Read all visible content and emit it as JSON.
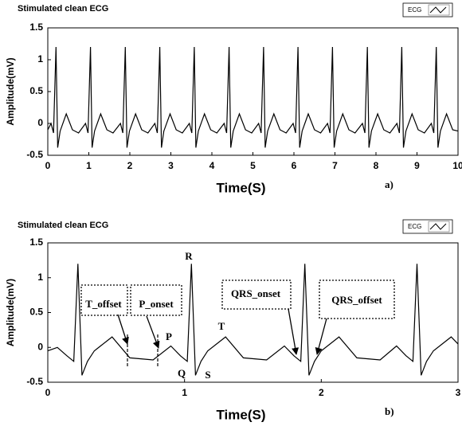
{
  "chart_data": [
    {
      "type": "line",
      "title": "Stimulated clean ECG",
      "xlabel": "Time(S)",
      "ylabel": "Amplitude(mV)",
      "panel_label": "a)",
      "x": [
        0,
        0.08,
        0.14,
        0.2,
        0.24,
        0.3,
        0.45,
        0.6,
        0.75,
        0.92,
        0.98,
        1.04,
        1.08,
        1.14,
        1.29,
        1.44,
        1.59,
        1.77,
        1.83,
        1.89,
        1.93,
        1.99,
        2.14,
        2.29,
        2.44,
        2.61,
        2.67,
        2.73,
        2.77,
        2.83,
        2.98,
        3.13,
        3.28,
        3.45,
        3.51,
        3.57,
        3.61,
        3.67,
        3.82,
        3.97,
        4.12,
        4.3,
        4.36,
        4.42,
        4.46,
        4.52,
        4.67,
        4.82,
        4.97,
        5.14,
        5.2,
        5.26,
        5.3,
        5.36,
        5.51,
        5.66,
        5.81,
        5.98,
        6.04,
        6.1,
        6.14,
        6.2,
        6.35,
        6.5,
        6.65,
        6.82,
        6.88,
        6.94,
        6.98,
        7.04,
        7.19,
        7.34,
        7.49,
        7.67,
        7.73,
        7.79,
        7.83,
        7.89,
        8.04,
        8.19,
        8.34,
        8.51,
        8.57,
        8.63,
        8.67,
        8.73,
        8.88,
        9.03,
        9.18,
        9.35,
        9.41,
        9.47,
        9.51,
        9.57,
        9.72,
        9.87,
        10
      ],
      "series": [
        {
          "name": "ECG",
          "color": "#000000",
          "values": [
            -0.1,
            0.0,
            -0.15,
            1.2,
            -0.38,
            -0.12,
            0.15,
            -0.1,
            -0.15,
            0.0,
            -0.15,
            1.2,
            -0.38,
            -0.12,
            0.15,
            -0.1,
            -0.15,
            0.0,
            -0.15,
            1.2,
            -0.38,
            -0.12,
            0.15,
            -0.1,
            -0.15,
            0.0,
            -0.15,
            1.2,
            -0.38,
            -0.12,
            0.15,
            -0.1,
            -0.15,
            0.0,
            -0.15,
            1.2,
            -0.38,
            -0.12,
            0.15,
            -0.1,
            -0.15,
            0.0,
            -0.15,
            1.2,
            -0.38,
            -0.12,
            0.15,
            -0.1,
            -0.15,
            0.0,
            -0.15,
            1.2,
            -0.38,
            -0.12,
            0.15,
            -0.1,
            -0.15,
            0.0,
            -0.15,
            1.2,
            -0.38,
            -0.12,
            0.15,
            -0.1,
            -0.15,
            0.0,
            -0.15,
            1.2,
            -0.38,
            -0.12,
            0.15,
            -0.1,
            -0.15,
            0.0,
            -0.15,
            1.2,
            -0.38,
            -0.12,
            0.15,
            -0.1,
            -0.15,
            0.0,
            -0.15,
            1.2,
            -0.38,
            -0.12,
            0.15,
            -0.1,
            -0.15,
            0.0,
            -0.15,
            1.2,
            -0.38,
            -0.12,
            0.15,
            -0.1,
            -0.12
          ]
        }
      ],
      "xlim": [
        0,
        10
      ],
      "xticks": [
        0,
        1,
        2,
        3,
        4,
        5,
        6,
        7,
        8,
        9,
        10
      ],
      "ylim": [
        -0.5,
        1.5
      ],
      "yticks": [
        -0.5,
        0,
        0.5,
        1,
        1.5
      ],
      "grid": false
    },
    {
      "type": "line",
      "title": "Stimulated clean ECG",
      "xlabel": "Time(S)",
      "ylabel": "Amplitude(mV)",
      "panel_label": "b)",
      "x": [
        0,
        0.07,
        0.14,
        0.19,
        0.22,
        0.25,
        0.29,
        0.34,
        0.47,
        0.6,
        0.77,
        0.9,
        0.97,
        1.02,
        1.05,
        1.08,
        1.12,
        1.17,
        1.3,
        1.43,
        1.6,
        1.73,
        1.8,
        1.85,
        1.88,
        1.91,
        1.95,
        2.0,
        2.13,
        2.26,
        2.43,
        2.55,
        2.62,
        2.67,
        2.7,
        2.73,
        2.77,
        2.82,
        2.95,
        3.0
      ],
      "series": [
        {
          "name": "ECG",
          "color": "#000000",
          "values": [
            -0.05,
            0.0,
            -0.12,
            -0.2,
            1.2,
            -0.4,
            -0.2,
            -0.05,
            0.15,
            -0.15,
            -0.18,
            0.02,
            -0.12,
            -0.2,
            1.2,
            -0.4,
            -0.2,
            -0.05,
            0.15,
            -0.15,
            -0.18,
            0.02,
            -0.12,
            -0.2,
            1.2,
            -0.4,
            -0.2,
            -0.05,
            0.15,
            -0.15,
            -0.18,
            0.02,
            -0.12,
            -0.2,
            1.2,
            -0.4,
            -0.2,
            -0.05,
            0.15,
            0.05
          ]
        }
      ],
      "xlim": [
        0,
        3
      ],
      "xticks": [
        0,
        1,
        2,
        3
      ],
      "ylim": [
        -0.5,
        1.5
      ],
      "yticks": [
        -0.5,
        0,
        0.5,
        1,
        1.5
      ],
      "grid": false,
      "annotations": [
        "R",
        "P",
        "T",
        "Q",
        "S",
        "T_offset",
        "P_onset",
        "QRS_onset",
        "QRS_offset"
      ]
    }
  ]
}
